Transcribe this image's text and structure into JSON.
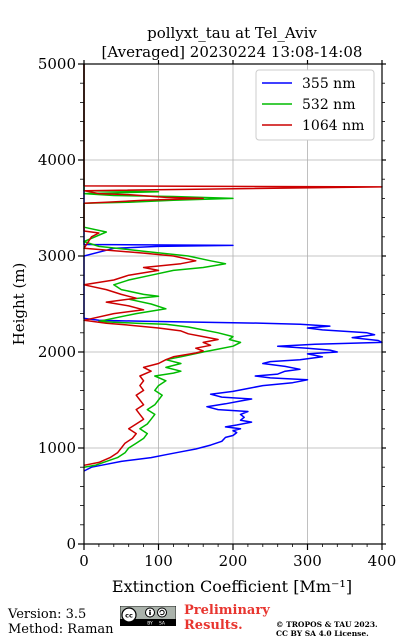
{
  "chart_data": {
    "type": "line",
    "title_line1": "pollyxt_tau at Tel_Aviv",
    "title_line2": "[Averaged] 20230224 13:08-14:08",
    "xlabel": "Extinction Coefficient [Mm⁻¹]",
    "ylabel": "Height (m)",
    "xlim": [
      0,
      400
    ],
    "ylim": [
      0,
      5000
    ],
    "x_ticks": [
      0,
      100,
      200,
      300,
      400
    ],
    "y_ticks": [
      0,
      1000,
      2000,
      3000,
      4000,
      5000
    ],
    "grid": true,
    "legend_position": "top-right",
    "series": [
      {
        "name": "355 nm",
        "color": "#0000ff",
        "points": [
          [
            0,
            760
          ],
          [
            10,
            800
          ],
          [
            30,
            830
          ],
          [
            50,
            860
          ],
          [
            70,
            880
          ],
          [
            90,
            900
          ],
          [
            110,
            930
          ],
          [
            130,
            960
          ],
          [
            150,
            990
          ],
          [
            170,
            1030
          ],
          [
            185,
            1070
          ],
          [
            190,
            1110
          ],
          [
            200,
            1130
          ],
          [
            205,
            1160
          ],
          [
            200,
            1180
          ],
          [
            210,
            1200
          ],
          [
            190,
            1220
          ],
          [
            205,
            1240
          ],
          [
            225,
            1270
          ],
          [
            210,
            1290
          ],
          [
            215,
            1320
          ],
          [
            210,
            1350
          ],
          [
            220,
            1380
          ],
          [
            180,
            1400
          ],
          [
            165,
            1430
          ],
          [
            190,
            1460
          ],
          [
            210,
            1490
          ],
          [
            225,
            1510
          ],
          [
            185,
            1530
          ],
          [
            170,
            1560
          ],
          [
            200,
            1590
          ],
          [
            220,
            1620
          ],
          [
            240,
            1650
          ],
          [
            280,
            1680
          ],
          [
            300,
            1710
          ],
          [
            250,
            1730
          ],
          [
            230,
            1750
          ],
          [
            260,
            1770
          ],
          [
            270,
            1800
          ],
          [
            290,
            1820
          ],
          [
            270,
            1850
          ],
          [
            240,
            1880
          ],
          [
            250,
            1900
          ],
          [
            290,
            1920
          ],
          [
            320,
            1950
          ],
          [
            300,
            1980
          ],
          [
            340,
            2000
          ],
          [
            330,
            2020
          ],
          [
            300,
            2040
          ],
          [
            260,
            2060
          ],
          [
            310,
            2080
          ],
          [
            400,
            2100
          ],
          [
            395,
            2120
          ],
          [
            360,
            2150
          ],
          [
            390,
            2180
          ],
          [
            380,
            2200
          ],
          [
            320,
            2230
          ],
          [
            300,
            2250
          ],
          [
            330,
            2270
          ],
          [
            290,
            2290
          ],
          [
            240,
            2300
          ],
          [
            160,
            2310
          ],
          [
            80,
            2320
          ],
          [
            20,
            2330
          ],
          [
            0,
            2350
          ],
          [
            0,
            3000
          ],
          [
            40,
            3080
          ],
          [
            100,
            3100
          ],
          [
            200,
            3110
          ],
          [
            0,
            3120
          ],
          [
            0,
            5000
          ]
        ]
      },
      {
        "name": "532 nm",
        "color": "#00bb00",
        "points": [
          [
            0,
            800
          ],
          [
            15,
            820
          ],
          [
            30,
            860
          ],
          [
            45,
            900
          ],
          [
            55,
            950
          ],
          [
            60,
            1000
          ],
          [
            70,
            1050
          ],
          [
            80,
            1100
          ],
          [
            85,
            1150
          ],
          [
            75,
            1200
          ],
          [
            85,
            1250
          ],
          [
            90,
            1300
          ],
          [
            95,
            1350
          ],
          [
            85,
            1400
          ],
          [
            95,
            1450
          ],
          [
            100,
            1500
          ],
          [
            105,
            1550
          ],
          [
            95,
            1600
          ],
          [
            100,
            1650
          ],
          [
            110,
            1700
          ],
          [
            95,
            1750
          ],
          [
            120,
            1780
          ],
          [
            130,
            1800
          ],
          [
            110,
            1840
          ],
          [
            130,
            1880
          ],
          [
            110,
            1920
          ],
          [
            130,
            1950
          ],
          [
            160,
            2000
          ],
          [
            180,
            2030
          ],
          [
            200,
            2060
          ],
          [
            210,
            2100
          ],
          [
            195,
            2130
          ],
          [
            200,
            2160
          ],
          [
            180,
            2200
          ],
          [
            160,
            2230
          ],
          [
            140,
            2260
          ],
          [
            110,
            2290
          ],
          [
            70,
            2300
          ],
          [
            40,
            2310
          ],
          [
            20,
            2320
          ],
          [
            70,
            2400
          ],
          [
            110,
            2450
          ],
          [
            90,
            2500
          ],
          [
            60,
            2550
          ],
          [
            100,
            2580
          ],
          [
            80,
            2600
          ],
          [
            50,
            2650
          ],
          [
            40,
            2700
          ],
          [
            60,
            2750
          ],
          [
            90,
            2800
          ],
          [
            120,
            2850
          ],
          [
            160,
            2880
          ],
          [
            190,
            2920
          ],
          [
            170,
            2950
          ],
          [
            140,
            3000
          ],
          [
            80,
            3050
          ],
          [
            20,
            3100
          ],
          [
            0,
            3150
          ],
          [
            30,
            3250
          ],
          [
            0,
            3300
          ],
          [
            0,
            3550
          ],
          [
            60,
            3560
          ],
          [
            120,
            3580
          ],
          [
            200,
            3600
          ],
          [
            120,
            3620
          ],
          [
            40,
            3630
          ],
          [
            0,
            3650
          ],
          [
            100,
            3670
          ],
          [
            0,
            3680
          ],
          [
            0,
            5000
          ]
        ]
      },
      {
        "name": "1064 nm",
        "color": "#cc0000",
        "points": [
          [
            0,
            820
          ],
          [
            20,
            850
          ],
          [
            35,
            900
          ],
          [
            45,
            950
          ],
          [
            50,
            1000
          ],
          [
            55,
            1050
          ],
          [
            65,
            1100
          ],
          [
            70,
            1150
          ],
          [
            60,
            1200
          ],
          [
            70,
            1250
          ],
          [
            80,
            1300
          ],
          [
            75,
            1350
          ],
          [
            70,
            1400
          ],
          [
            80,
            1450
          ],
          [
            75,
            1500
          ],
          [
            70,
            1550
          ],
          [
            80,
            1600
          ],
          [
            75,
            1650
          ],
          [
            80,
            1700
          ],
          [
            75,
            1750
          ],
          [
            90,
            1800
          ],
          [
            80,
            1840
          ],
          [
            100,
            1880
          ],
          [
            110,
            1920
          ],
          [
            120,
            1950
          ],
          [
            150,
            1990
          ],
          [
            160,
            2010
          ],
          [
            150,
            2040
          ],
          [
            170,
            2070
          ],
          [
            160,
            2100
          ],
          [
            180,
            2130
          ],
          [
            160,
            2160
          ],
          [
            140,
            2190
          ],
          [
            130,
            2220
          ],
          [
            100,
            2250
          ],
          [
            60,
            2280
          ],
          [
            30,
            2300
          ],
          [
            0,
            2330
          ],
          [
            40,
            2400
          ],
          [
            80,
            2440
          ],
          [
            60,
            2480
          ],
          [
            30,
            2520
          ],
          [
            70,
            2560
          ],
          [
            50,
            2600
          ],
          [
            30,
            2650
          ],
          [
            0,
            2700
          ],
          [
            40,
            2750
          ],
          [
            60,
            2800
          ],
          [
            100,
            2850
          ],
          [
            80,
            2880
          ],
          [
            130,
            2920
          ],
          [
            150,
            2950
          ],
          [
            120,
            3000
          ],
          [
            80,
            3030
          ],
          [
            0,
            3080
          ],
          [
            10,
            3200
          ],
          [
            20,
            3240
          ],
          [
            0,
            3260
          ],
          [
            0,
            3550
          ],
          [
            30,
            3560
          ],
          [
            80,
            3580
          ],
          [
            160,
            3600
          ],
          [
            110,
            3610
          ],
          [
            60,
            3640
          ],
          [
            20,
            3650
          ],
          [
            0,
            3680
          ],
          [
            400,
            3720
          ],
          [
            0,
            3730
          ],
          [
            0,
            5000
          ]
        ]
      }
    ]
  },
  "footer": {
    "version": "Version: 3.5",
    "method": "Method: Raman",
    "license_badge": "cc-by-sa-badge",
    "preliminary_line1": "Preliminary",
    "preliminary_line2": "Results.",
    "copyright_line1": "© TROPOS & TAU 2023.",
    "copyright_line2": "CC BY SA 4.0 License."
  }
}
